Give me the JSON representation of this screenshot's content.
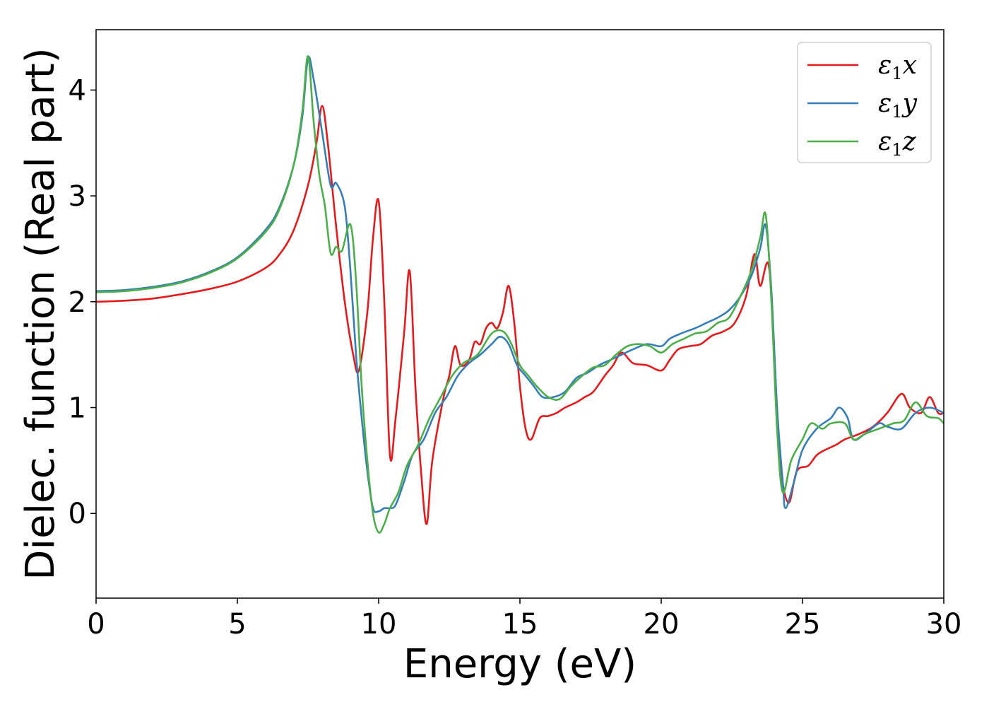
{
  "chart_data": {
    "type": "line",
    "title": "",
    "xlabel": "Energy (eV)",
    "ylabel": "Dielec. function (Real part)",
    "xlim": [
      0,
      30
    ],
    "ylim": [
      -0.8,
      4.57
    ],
    "x_ticks": [
      {
        "value": 0,
        "label": "0"
      },
      {
        "value": 5,
        "label": "5"
      },
      {
        "value": 10,
        "label": "10"
      },
      {
        "value": 15,
        "label": "15"
      },
      {
        "value": 20,
        "label": "20"
      },
      {
        "value": 25,
        "label": "25"
      },
      {
        "value": 30,
        "label": "30"
      }
    ],
    "y_ticks": [
      {
        "value": 0,
        "label": "0"
      },
      {
        "value": 1,
        "label": "1"
      },
      {
        "value": 2,
        "label": "2"
      },
      {
        "value": 3,
        "label": "3"
      },
      {
        "value": 4,
        "label": "4"
      }
    ],
    "grid": false,
    "legend_position": "top-right",
    "series": [
      {
        "name_symbol": "ε",
        "name_sub": "1",
        "name_suffix": "x",
        "color": "#e41a1c",
        "points": [
          [
            0,
            2.0
          ],
          [
            1,
            2.01
          ],
          [
            2,
            2.03
          ],
          [
            3,
            2.07
          ],
          [
            4,
            2.12
          ],
          [
            5,
            2.19
          ],
          [
            6,
            2.32
          ],
          [
            6.5,
            2.45
          ],
          [
            7,
            2.68
          ],
          [
            7.5,
            3.1
          ],
          [
            7.8,
            3.5
          ],
          [
            8.0,
            3.85
          ],
          [
            8.2,
            3.5
          ],
          [
            8.5,
            2.7
          ],
          [
            8.8,
            2.0
          ],
          [
            9.1,
            1.5
          ],
          [
            9.3,
            1.35
          ],
          [
            9.6,
            1.9
          ],
          [
            9.8,
            2.6
          ],
          [
            10.0,
            2.95
          ],
          [
            10.2,
            2.0
          ],
          [
            10.4,
            0.55
          ],
          [
            10.6,
            0.9
          ],
          [
            10.9,
            1.7
          ],
          [
            11.1,
            2.29
          ],
          [
            11.3,
            1.2
          ],
          [
            11.5,
            0.4
          ],
          [
            11.7,
            -0.1
          ],
          [
            11.9,
            0.5
          ],
          [
            12.3,
            1.1
          ],
          [
            12.5,
            1.3
          ],
          [
            12.7,
            1.58
          ],
          [
            12.9,
            1.4
          ],
          [
            13.2,
            1.45
          ],
          [
            13.4,
            1.62
          ],
          [
            13.6,
            1.6
          ],
          [
            13.8,
            1.75
          ],
          [
            14.0,
            1.8
          ],
          [
            14.2,
            1.75
          ],
          [
            14.4,
            1.9
          ],
          [
            14.6,
            2.15
          ],
          [
            14.8,
            1.8
          ],
          [
            15.0,
            1.2
          ],
          [
            15.2,
            0.8
          ],
          [
            15.4,
            0.7
          ],
          [
            15.7,
            0.9
          ],
          [
            16.0,
            0.92
          ],
          [
            16.3,
            0.95
          ],
          [
            16.6,
            1.0
          ],
          [
            17.0,
            1.05
          ],
          [
            17.3,
            1.1
          ],
          [
            17.6,
            1.15
          ],
          [
            18.0,
            1.3
          ],
          [
            18.3,
            1.4
          ],
          [
            18.6,
            1.52
          ],
          [
            19.0,
            1.42
          ],
          [
            19.5,
            1.4
          ],
          [
            20.0,
            1.35
          ],
          [
            20.3,
            1.45
          ],
          [
            20.6,
            1.55
          ],
          [
            21.0,
            1.58
          ],
          [
            21.4,
            1.6
          ],
          [
            21.8,
            1.68
          ],
          [
            22.2,
            1.72
          ],
          [
            22.6,
            1.8
          ],
          [
            23.0,
            2.05
          ],
          [
            23.3,
            2.45
          ],
          [
            23.5,
            2.15
          ],
          [
            23.8,
            2.35
          ],
          [
            24.0,
            1.5
          ],
          [
            24.2,
            0.5
          ],
          [
            24.5,
            0.1
          ],
          [
            24.8,
            0.4
          ],
          [
            25.2,
            0.45
          ],
          [
            25.5,
            0.55
          ],
          [
            25.8,
            0.6
          ],
          [
            26.2,
            0.65
          ],
          [
            26.5,
            0.7
          ],
          [
            27.0,
            0.75
          ],
          [
            27.5,
            0.82
          ],
          [
            28.0,
            0.95
          ],
          [
            28.5,
            1.13
          ],
          [
            28.8,
            1.0
          ],
          [
            29.2,
            0.95
          ],
          [
            29.5,
            1.1
          ],
          [
            29.8,
            0.95
          ],
          [
            30,
            0.95
          ]
        ]
      },
      {
        "name_symbol": "ε",
        "name_sub": "1",
        "name_suffix": "y",
        "color": "#377eb8",
        "points": [
          [
            0,
            2.1
          ],
          [
            1,
            2.11
          ],
          [
            2,
            2.14
          ],
          [
            3,
            2.19
          ],
          [
            4,
            2.28
          ],
          [
            5,
            2.42
          ],
          [
            6,
            2.68
          ],
          [
            6.5,
            2.9
          ],
          [
            7,
            3.3
          ],
          [
            7.3,
            3.75
          ],
          [
            7.5,
            4.3
          ],
          [
            7.7,
            4.1
          ],
          [
            8.0,
            3.6
          ],
          [
            8.3,
            3.1
          ],
          [
            8.5,
            3.12
          ],
          [
            8.8,
            2.9
          ],
          [
            9.0,
            2.3
          ],
          [
            9.2,
            1.5
          ],
          [
            9.4,
            0.9
          ],
          [
            9.6,
            0.4
          ],
          [
            9.8,
            0.05
          ],
          [
            10.0,
            0.02
          ],
          [
            10.2,
            0.05
          ],
          [
            10.4,
            0.05
          ],
          [
            10.6,
            0.08
          ],
          [
            10.9,
            0.3
          ],
          [
            11.2,
            0.55
          ],
          [
            11.6,
            0.7
          ],
          [
            12.0,
            0.95
          ],
          [
            12.4,
            1.1
          ],
          [
            12.8,
            1.3
          ],
          [
            13.2,
            1.42
          ],
          [
            13.6,
            1.5
          ],
          [
            14.0,
            1.6
          ],
          [
            14.3,
            1.67
          ],
          [
            14.6,
            1.6
          ],
          [
            14.9,
            1.4
          ],
          [
            15.2,
            1.3
          ],
          [
            15.5,
            1.2
          ],
          [
            15.8,
            1.1
          ],
          [
            16.2,
            1.1
          ],
          [
            16.6,
            1.15
          ],
          [
            17.0,
            1.28
          ],
          [
            17.4,
            1.33
          ],
          [
            17.8,
            1.4
          ],
          [
            18.2,
            1.45
          ],
          [
            18.6,
            1.5
          ],
          [
            19.0,
            1.55
          ],
          [
            19.5,
            1.6
          ],
          [
            20.0,
            1.58
          ],
          [
            20.3,
            1.65
          ],
          [
            20.7,
            1.7
          ],
          [
            21.2,
            1.75
          ],
          [
            21.6,
            1.8
          ],
          [
            22.0,
            1.85
          ],
          [
            22.4,
            1.92
          ],
          [
            22.8,
            2.05
          ],
          [
            23.2,
            2.25
          ],
          [
            23.5,
            2.5
          ],
          [
            23.7,
            2.72
          ],
          [
            23.9,
            2.1
          ],
          [
            24.1,
            1.0
          ],
          [
            24.3,
            0.3
          ],
          [
            24.4,
            0.05
          ],
          [
            24.7,
            0.3
          ],
          [
            25.0,
            0.6
          ],
          [
            25.5,
            0.8
          ],
          [
            26.0,
            0.9
          ],
          [
            26.3,
            1.0
          ],
          [
            26.6,
            0.9
          ],
          [
            26.8,
            0.7
          ],
          [
            27.2,
            0.75
          ],
          [
            27.7,
            0.85
          ],
          [
            28.0,
            0.82
          ],
          [
            28.5,
            0.8
          ],
          [
            29.0,
            0.95
          ],
          [
            29.5,
            1.0
          ],
          [
            30,
            0.95
          ]
        ]
      },
      {
        "name_symbol": "ε",
        "name_sub": "1",
        "name_suffix": "z",
        "color": "#4daf4a",
        "points": [
          [
            0,
            2.09
          ],
          [
            1,
            2.1
          ],
          [
            2,
            2.13
          ],
          [
            3,
            2.18
          ],
          [
            4,
            2.27
          ],
          [
            5,
            2.41
          ],
          [
            6,
            2.66
          ],
          [
            6.5,
            2.88
          ],
          [
            7,
            3.3
          ],
          [
            7.3,
            3.8
          ],
          [
            7.5,
            4.32
          ],
          [
            7.7,
            3.7
          ],
          [
            7.9,
            3.2
          ],
          [
            8.1,
            2.9
          ],
          [
            8.3,
            2.46
          ],
          [
            8.5,
            2.52
          ],
          [
            8.7,
            2.48
          ],
          [
            9.0,
            2.73
          ],
          [
            9.2,
            2.2
          ],
          [
            9.4,
            1.2
          ],
          [
            9.6,
            0.5
          ],
          [
            9.8,
            0.0
          ],
          [
            10.0,
            -0.18
          ],
          [
            10.2,
            -0.1
          ],
          [
            10.4,
            0.05
          ],
          [
            10.7,
            0.2
          ],
          [
            11.0,
            0.45
          ],
          [
            11.4,
            0.65
          ],
          [
            11.8,
            0.9
          ],
          [
            12.2,
            1.1
          ],
          [
            12.6,
            1.3
          ],
          [
            13.0,
            1.42
          ],
          [
            13.5,
            1.5
          ],
          [
            14.0,
            1.7
          ],
          [
            14.4,
            1.72
          ],
          [
            14.7,
            1.6
          ],
          [
            15.0,
            1.4
          ],
          [
            15.3,
            1.3
          ],
          [
            15.6,
            1.2
          ],
          [
            16.0,
            1.1
          ],
          [
            16.4,
            1.08
          ],
          [
            16.8,
            1.2
          ],
          [
            17.2,
            1.3
          ],
          [
            17.6,
            1.38
          ],
          [
            18.0,
            1.4
          ],
          [
            18.4,
            1.5
          ],
          [
            18.8,
            1.58
          ],
          [
            19.2,
            1.6
          ],
          [
            19.6,
            1.58
          ],
          [
            20.0,
            1.52
          ],
          [
            20.4,
            1.6
          ],
          [
            20.8,
            1.65
          ],
          [
            21.2,
            1.7
          ],
          [
            21.6,
            1.72
          ],
          [
            22.0,
            1.8
          ],
          [
            22.4,
            1.85
          ],
          [
            22.8,
            2.05
          ],
          [
            23.2,
            2.3
          ],
          [
            23.5,
            2.6
          ],
          [
            23.7,
            2.82
          ],
          [
            23.9,
            2.0
          ],
          [
            24.1,
            0.8
          ],
          [
            24.3,
            0.2
          ],
          [
            24.6,
            0.5
          ],
          [
            25.0,
            0.7
          ],
          [
            25.3,
            0.85
          ],
          [
            25.7,
            0.8
          ],
          [
            26.0,
            0.85
          ],
          [
            26.5,
            0.85
          ],
          [
            26.8,
            0.7
          ],
          [
            27.2,
            0.75
          ],
          [
            27.7,
            0.8
          ],
          [
            28.2,
            0.85
          ],
          [
            28.6,
            0.88
          ],
          [
            29.0,
            1.05
          ],
          [
            29.4,
            0.92
          ],
          [
            29.8,
            0.9
          ],
          [
            30,
            0.85
          ]
        ]
      }
    ]
  }
}
